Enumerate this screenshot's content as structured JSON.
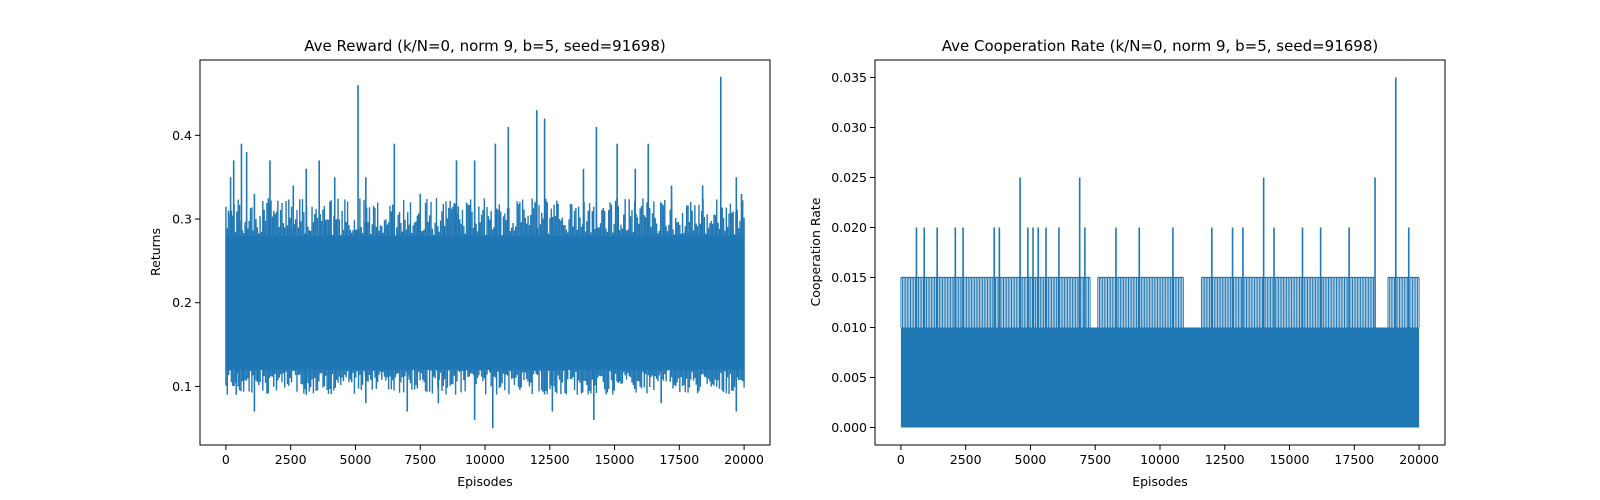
{
  "chart_data": [
    {
      "type": "line",
      "title": "Ave Reward (k/N=0, norm 9, b=5, seed=91698)",
      "xlabel": "Episodes",
      "ylabel": "Returns",
      "xlim": [
        -1000,
        21000
      ],
      "ylim": [
        0.03,
        0.49
      ],
      "xticks": [
        0,
        2500,
        5000,
        7500,
        10000,
        12500,
        15000,
        17500,
        20000
      ],
      "yticks": [
        0.1,
        0.2,
        0.3,
        0.4
      ],
      "ytick_labels": [
        "0.1",
        "0.2",
        "0.3",
        "0.4"
      ],
      "grid": false,
      "color": "#1f77b4",
      "series": [
        {
          "x": [
            0,
            20000
          ],
          "band": {
            "low": 0.12,
            "high": 0.28
          },
          "spikes_high": [
            [
              100,
              0.31
            ],
            [
              180,
              0.35
            ],
            [
              300,
              0.37
            ],
            [
              600,
              0.39
            ],
            [
              800,
              0.38
            ],
            [
              1100,
              0.33
            ],
            [
              1700,
              0.37
            ],
            [
              2600,
              0.34
            ],
            [
              3100,
              0.36
            ],
            [
              3600,
              0.37
            ],
            [
              4200,
              0.35
            ],
            [
              5100,
              0.46
            ],
            [
              5400,
              0.35
            ],
            [
              6500,
              0.39
            ],
            [
              7500,
              0.33
            ],
            [
              8900,
              0.37
            ],
            [
              9600,
              0.37
            ],
            [
              10400,
              0.39
            ],
            [
              10900,
              0.41
            ],
            [
              12000,
              0.43
            ],
            [
              12300,
              0.42
            ],
            [
              13800,
              0.36
            ],
            [
              14300,
              0.41
            ],
            [
              15100,
              0.39
            ],
            [
              15800,
              0.36
            ],
            [
              16300,
              0.39
            ],
            [
              17200,
              0.34
            ],
            [
              18400,
              0.34
            ],
            [
              19100,
              0.47
            ],
            [
              19700,
              0.35
            ],
            [
              19900,
              0.33
            ]
          ],
          "spikes_low": [
            [
              400,
              0.09
            ],
            [
              1100,
              0.07
            ],
            [
              3100,
              0.09
            ],
            [
              5400,
              0.08
            ],
            [
              7000,
              0.07
            ],
            [
              8200,
              0.08
            ],
            [
              9600,
              0.06
            ],
            [
              10300,
              0.05
            ],
            [
              12600,
              0.07
            ],
            [
              14200,
              0.06
            ],
            [
              16800,
              0.08
            ],
            [
              19700,
              0.07
            ]
          ]
        }
      ]
    },
    {
      "type": "line",
      "title": "Ave Cooperation Rate (k/N=0, norm 9, b=5, seed=91698)",
      "xlabel": "Episodes",
      "ylabel": "Cooperation Rate",
      "xlim": [
        -1000,
        21000
      ],
      "ylim": [
        -0.00175,
        0.03675
      ],
      "xticks": [
        0,
        2500,
        5000,
        7500,
        10000,
        12500,
        15000,
        17500,
        20000
      ],
      "yticks": [
        0.0,
        0.005,
        0.01,
        0.015,
        0.02,
        0.025,
        0.03,
        0.035
      ],
      "ytick_labels": [
        "0.000",
        "0.005",
        "0.010",
        "0.015",
        "0.020",
        "0.025",
        "0.030",
        "0.035"
      ],
      "grid": false,
      "color": "#1f77b4",
      "series": [
        {
          "x": [
            0,
            20000
          ],
          "band": {
            "low": 0.0,
            "high": 0.01
          },
          "dense_level_ranges": [
            [
              0,
              7300,
              0.015
            ],
            [
              7600,
              10900,
              0.015
            ],
            [
              11600,
              18300,
              0.015
            ],
            [
              18800,
              20000,
              0.015
            ]
          ],
          "spikes_high": [
            [
              600,
              0.02
            ],
            [
              900,
              0.02
            ],
            [
              1400,
              0.02
            ],
            [
              2100,
              0.02
            ],
            [
              2400,
              0.02
            ],
            [
              3600,
              0.02
            ],
            [
              3800,
              0.02
            ],
            [
              4600,
              0.025
            ],
            [
              4900,
              0.02
            ],
            [
              5100,
              0.02
            ],
            [
              5300,
              0.02
            ],
            [
              5600,
              0.02
            ],
            [
              6100,
              0.02
            ],
            [
              6900,
              0.025
            ],
            [
              7100,
              0.02
            ],
            [
              8300,
              0.02
            ],
            [
              9200,
              0.02
            ],
            [
              10500,
              0.02
            ],
            [
              12000,
              0.02
            ],
            [
              12800,
              0.02
            ],
            [
              13200,
              0.02
            ],
            [
              14000,
              0.025
            ],
            [
              14400,
              0.02
            ],
            [
              15500,
              0.02
            ],
            [
              16200,
              0.02
            ],
            [
              17300,
              0.02
            ],
            [
              18300,
              0.025
            ],
            [
              19100,
              0.035
            ],
            [
              19600,
              0.02
            ]
          ]
        }
      ]
    }
  ]
}
